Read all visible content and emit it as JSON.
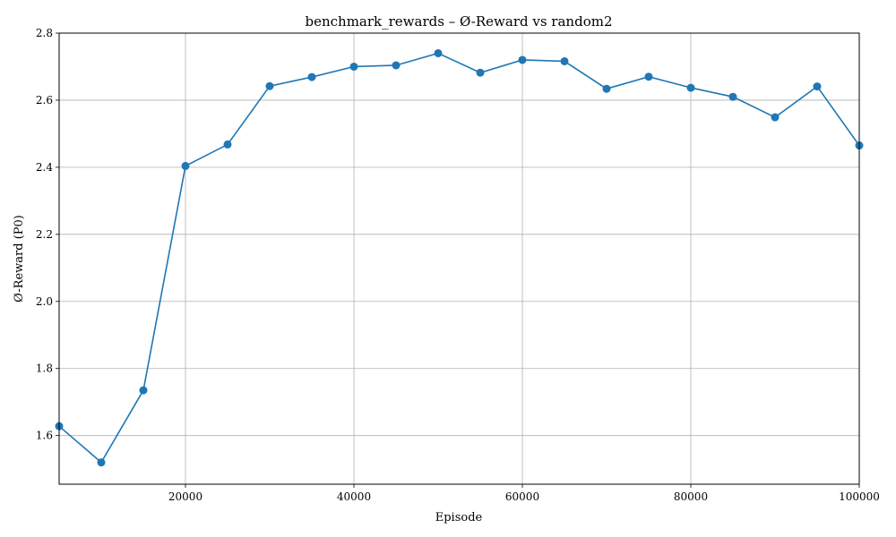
{
  "chart_data": {
    "type": "line",
    "title": "benchmark_rewards – Ø-Reward vs random2",
    "xlabel": "Episode",
    "ylabel": "Ø-Reward (P0)",
    "xlim": [
      5000,
      100000
    ],
    "ylim": [
      1.455,
      2.8
    ],
    "xticks": [
      20000,
      40000,
      60000,
      80000,
      100000
    ],
    "yticks": [
      1.6,
      1.8,
      2.0,
      2.2,
      2.4,
      2.6,
      2.8
    ],
    "grid": true,
    "series": [
      {
        "color": "#1f77b4",
        "marker": "circle",
        "x": [
          5000,
          10000,
          15000,
          20000,
          25000,
          30000,
          35000,
          40000,
          45000,
          50000,
          55000,
          60000,
          65000,
          70000,
          75000,
          80000,
          85000,
          90000,
          95000,
          100000
        ],
        "y": [
          1.628,
          1.52,
          1.735,
          2.404,
          2.468,
          2.642,
          2.669,
          2.7,
          2.704,
          2.74,
          2.682,
          2.72,
          2.716,
          2.634,
          2.67,
          2.637,
          2.61,
          2.549,
          2.641,
          2.465
        ]
      }
    ]
  }
}
